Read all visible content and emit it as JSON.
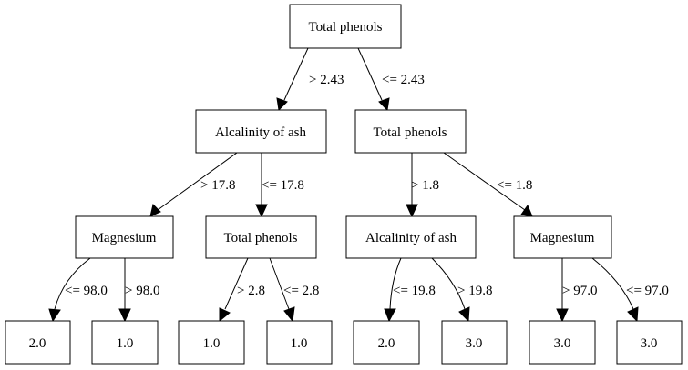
{
  "tree": {
    "nodes": {
      "root": "Total phenols",
      "alcalinity_1": "Alcalinity of ash",
      "phenols_2": "Total phenols",
      "magnesium_1": "Magnesium",
      "phenols_3": "Total phenols",
      "alcalinity_2": "Alcalinity of ash",
      "magnesium_2": "Magnesium",
      "leaf_1": "2.0",
      "leaf_2": "1.0",
      "leaf_3": "1.0",
      "leaf_4": "1.0",
      "leaf_5": "2.0",
      "leaf_6": "3.0",
      "leaf_7": "3.0",
      "leaf_8": "3.0"
    },
    "edges": {
      "root_to_alcalinity_1": "> 2.43",
      "root_to_phenols_2": "<= 2.43",
      "alcalinity_1_to_magnesium_1": "> 17.8",
      "alcalinity_1_to_phenols_3": "<= 17.8",
      "phenols_2_to_alcalinity_2": "> 1.8",
      "phenols_2_to_magnesium_2": "<= 1.8",
      "magnesium_1_to_leaf_1": "<= 98.0",
      "magnesium_1_to_leaf_2": "> 98.0",
      "phenols_3_to_leaf_3": "> 2.8",
      "phenols_3_to_leaf_4": "<= 2.8",
      "alcalinity_2_to_leaf_5": "<= 19.8",
      "alcalinity_2_to_leaf_6": "> 19.8",
      "magnesium_2_to_leaf_7": "> 97.0",
      "magnesium_2_to_leaf_8": "<= 97.0"
    }
  }
}
